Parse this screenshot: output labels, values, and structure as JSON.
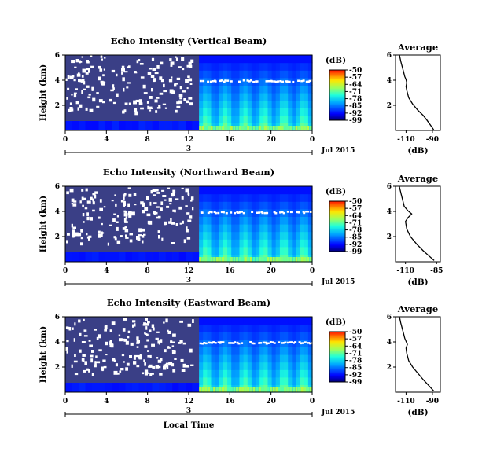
{
  "chart_data": [
    {
      "type": "heatmap",
      "title": "Echo Intensity (Vertical Beam)",
      "ylabel": "Height (km)",
      "y_ticks": [
        "6",
        "4",
        "2"
      ],
      "x_ticks": [
        "0",
        "4",
        "8",
        "12",
        "16",
        "20",
        "0"
      ],
      "date_tick": "3",
      "date_label": "Jul 2015",
      "colorbar": {
        "unit": "(dB)",
        "ticks": [
          "-50",
          "-57",
          "-64",
          "-71",
          "-78",
          "-85",
          "-92",
          "-99"
        ]
      },
      "average_profile": {
        "title": "Average",
        "xlabel": "(dB)",
        "x_ticks": [
          "-110",
          "-90"
        ],
        "y_ticks": [
          "6",
          "4",
          "2"
        ],
        "x_range": [
          -118,
          -84
        ],
        "y_range": [
          0,
          6
        ],
        "points": [
          [
            -115,
            6.0
          ],
          [
            -114,
            5.5
          ],
          [
            -113,
            5.1
          ],
          [
            -112,
            4.7
          ],
          [
            -111,
            4.3
          ],
          [
            -110,
            4.05
          ],
          [
            -109.5,
            3.8
          ],
          [
            -110,
            3.5
          ],
          [
            -109.5,
            3.2
          ],
          [
            -108,
            2.6
          ],
          [
            -105,
            2.1
          ],
          [
            -101,
            1.6
          ],
          [
            -97,
            1.2
          ],
          [
            -94,
            0.8
          ],
          [
            -91,
            0.35
          ],
          [
            -89,
            0.05
          ]
        ]
      }
    },
    {
      "type": "heatmap",
      "title": "Echo Intensity (Northward Beam)",
      "ylabel": "Height (km)",
      "y_ticks": [
        "6",
        "4",
        "2"
      ],
      "x_ticks": [
        "0",
        "4",
        "8",
        "12",
        "16",
        "20",
        "0"
      ],
      "date_tick": "3",
      "date_label": "Jul 2015",
      "colorbar": {
        "unit": "(dB)",
        "ticks": [
          "-50",
          "-57",
          "-64",
          "-71",
          "-78",
          "-85",
          "-92",
          "-99"
        ]
      },
      "average_profile": {
        "title": "Average",
        "xlabel": "(dB)",
        "x_ticks": [
          "-110",
          "-85"
        ],
        "y_ticks": [
          "6",
          "4",
          "2"
        ],
        "x_range": [
          -118,
          -82
        ],
        "y_range": [
          0,
          6
        ],
        "points": [
          [
            -115,
            6.0
          ],
          [
            -114,
            5.6
          ],
          [
            -113,
            5.2
          ],
          [
            -112,
            4.8
          ],
          [
            -111,
            4.4
          ],
          [
            -108,
            4.05
          ],
          [
            -105,
            3.8
          ],
          [
            -108,
            3.5
          ],
          [
            -110,
            3.2
          ],
          [
            -109,
            2.6
          ],
          [
            -106,
            2.0
          ],
          [
            -101,
            1.4
          ],
          [
            -96,
            0.9
          ],
          [
            -91,
            0.45
          ],
          [
            -87,
            0.1
          ]
        ]
      }
    },
    {
      "type": "heatmap",
      "title": "Echo Intensity (Eastward Beam)",
      "ylabel": "Height (km)",
      "y_ticks": [
        "6",
        "4",
        "2"
      ],
      "x_ticks": [
        "0",
        "4",
        "8",
        "12",
        "16",
        "20",
        "0"
      ],
      "date_tick": "3",
      "date_label": "Jul 2015",
      "xlabel": "Local Time",
      "colorbar": {
        "unit": "(dB)",
        "ticks": [
          "-50",
          "-57",
          "-64",
          "-71",
          "-78",
          "-85",
          "-92",
          "-99"
        ]
      },
      "average_profile": {
        "title": "Average",
        "xlabel": "(dB)",
        "x_ticks": [
          "-110",
          "-90"
        ],
        "y_ticks": [
          "6",
          "4",
          "2"
        ],
        "x_range": [
          -118,
          -84
        ],
        "y_range": [
          0,
          6
        ],
        "points": [
          [
            -115,
            6.0
          ],
          [
            -114,
            5.5
          ],
          [
            -113,
            5.1
          ],
          [
            -112,
            4.7
          ],
          [
            -111,
            4.3
          ],
          [
            -110,
            4.05
          ],
          [
            -109,
            3.8
          ],
          [
            -110,
            3.5
          ],
          [
            -109.5,
            3.1
          ],
          [
            -108,
            2.5
          ],
          [
            -105,
            2.0
          ],
          [
            -101,
            1.5
          ],
          [
            -97,
            1.0
          ],
          [
            -93,
            0.55
          ],
          [
            -89,
            0.1
          ]
        ]
      }
    }
  ]
}
